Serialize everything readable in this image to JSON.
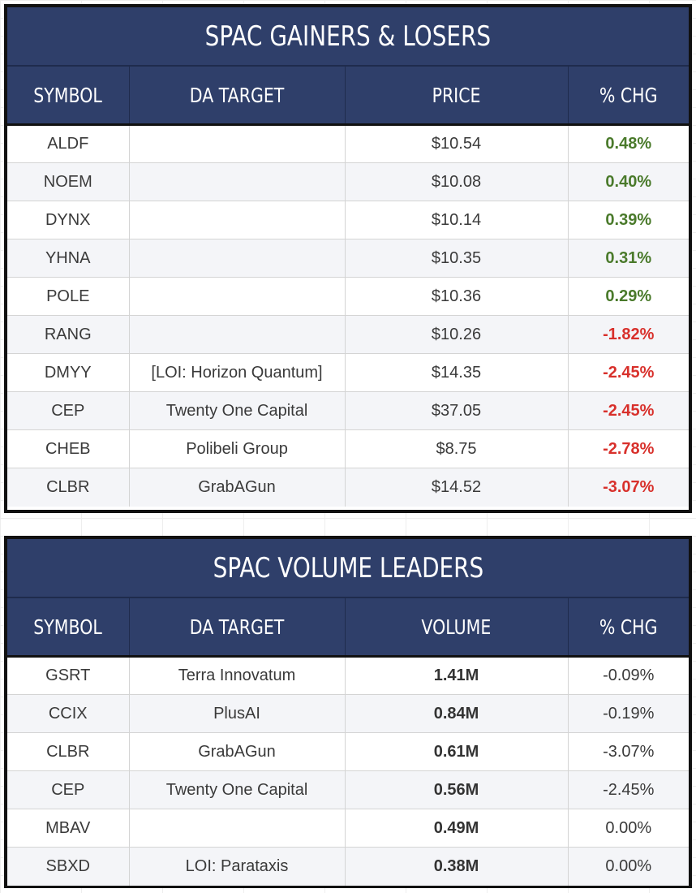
{
  "colors": {
    "header_bg": "#2f3f6a",
    "positive": "#4a7a2b",
    "negative": "#d8302b"
  },
  "gainers": {
    "title": "SPAC GAINERS & LOSERS",
    "columns": [
      "SYMBOL",
      "DA TARGET",
      "PRICE",
      "% CHG"
    ],
    "rows": [
      {
        "symbol": "ALDF",
        "target": "",
        "price": "$10.54",
        "chg": "0.48%"
      },
      {
        "symbol": "NOEM",
        "target": "",
        "price": "$10.08",
        "chg": "0.40%"
      },
      {
        "symbol": "DYNX",
        "target": "",
        "price": "$10.14",
        "chg": "0.39%"
      },
      {
        "symbol": "YHNA",
        "target": "",
        "price": "$10.35",
        "chg": "0.31%"
      },
      {
        "symbol": "POLE",
        "target": "",
        "price": "$10.36",
        "chg": "0.29%"
      },
      {
        "symbol": "RANG",
        "target": "",
        "price": "$10.26",
        "chg": "-1.82%"
      },
      {
        "symbol": "DMYY",
        "target": "[LOI: Horizon Quantum]",
        "price": "$14.35",
        "chg": "-2.45%"
      },
      {
        "symbol": "CEP",
        "target": "Twenty One Capital",
        "price": "$37.05",
        "chg": "-2.45%"
      },
      {
        "symbol": "CHEB",
        "target": "Polibeli Group",
        "price": "$8.75",
        "chg": "-2.78%"
      },
      {
        "symbol": "CLBR",
        "target": "GrabAGun",
        "price": "$14.52",
        "chg": "-3.07%"
      }
    ]
  },
  "volume": {
    "title": "SPAC VOLUME LEADERS",
    "columns": [
      "SYMBOL",
      "DA TARGET",
      "VOLUME",
      "% CHG"
    ],
    "rows": [
      {
        "symbol": "GSRT",
        "target": "Terra Innovatum",
        "volume": "1.41M",
        "chg": "-0.09%"
      },
      {
        "symbol": "CCIX",
        "target": "PlusAI",
        "volume": "0.84M",
        "chg": "-0.19%"
      },
      {
        "symbol": "CLBR",
        "target": "GrabAGun",
        "volume": "0.61M",
        "chg": "-3.07%"
      },
      {
        "symbol": "CEP",
        "target": "Twenty One Capital",
        "volume": "0.56M",
        "chg": "-2.45%"
      },
      {
        "symbol": "MBAV",
        "target": "",
        "volume": "0.49M",
        "chg": "0.00%"
      },
      {
        "symbol": "SBXD",
        "target": "LOI: Parataxis",
        "volume": "0.38M",
        "chg": "0.00%"
      }
    ]
  }
}
